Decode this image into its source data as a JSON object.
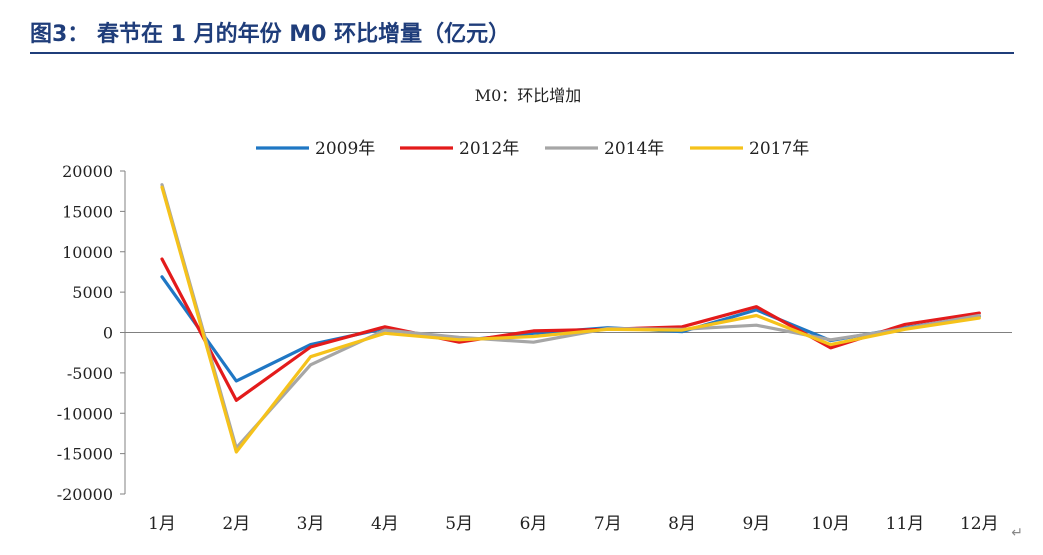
{
  "header": {
    "title": "图3：   春节在 1 月的年份 M0 环比增量（亿元）"
  },
  "chart_data": {
    "type": "line",
    "title": "M0：环比增加",
    "categories": [
      "1月",
      "2月",
      "3月",
      "4月",
      "5月",
      "6月",
      "7月",
      "8月",
      "9月",
      "10月",
      "11月",
      "12月"
    ],
    "ylim": [
      -20000,
      20000
    ],
    "yticks": [
      20000,
      15000,
      10000,
      5000,
      0,
      -5000,
      -10000,
      -15000,
      -20000
    ],
    "legend_position": "top",
    "grid": false,
    "series": [
      {
        "name": "2009年",
        "color": "#1f77c4",
        "values": [
          6900,
          -6000,
          -1500,
          500,
          -1000,
          -100,
          600,
          100,
          2800,
          -1000,
          600,
          2000
        ]
      },
      {
        "name": "2012年",
        "color": "#e31b1b",
        "values": [
          9100,
          -8400,
          -1800,
          700,
          -1200,
          200,
          400,
          700,
          3200,
          -1900,
          1000,
          2400
        ]
      },
      {
        "name": "2014年",
        "color": "#a6a6a6",
        "values": [
          18300,
          -14300,
          -4000,
          300,
          -600,
          -1200,
          500,
          400,
          900,
          -900,
          500,
          2100
        ]
      },
      {
        "name": "2017年",
        "color": "#f5c21b",
        "values": [
          18000,
          -14800,
          -3000,
          -100,
          -900,
          -500,
          400,
          300,
          2100,
          -1500,
          400,
          1800
        ]
      }
    ]
  },
  "footer": {
    "return_mark": "↵"
  }
}
